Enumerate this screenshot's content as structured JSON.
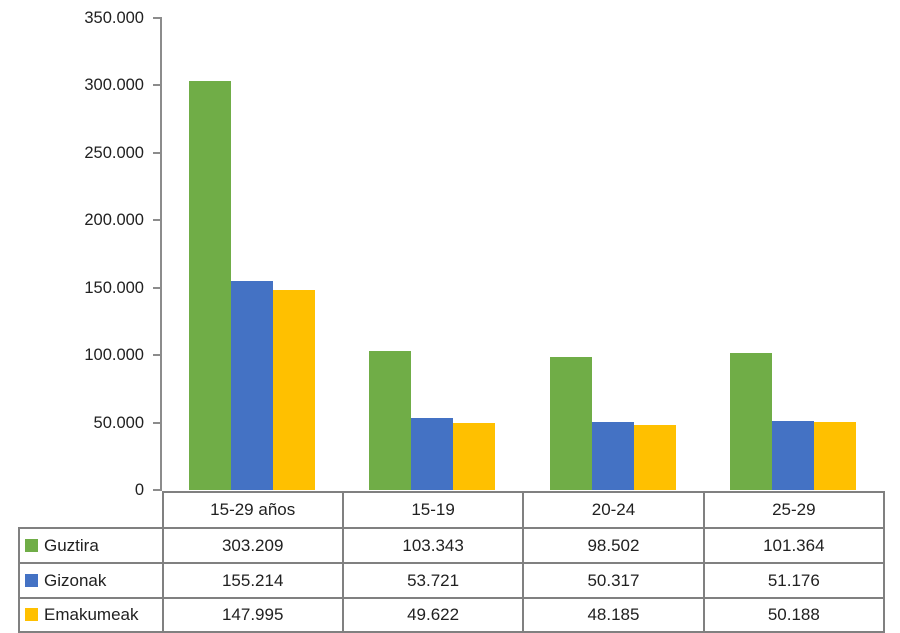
{
  "chart_data": {
    "type": "bar",
    "title": "",
    "xlabel": "",
    "ylabel": "",
    "categories": [
      "15-29 años",
      "15-19",
      "20-24",
      "25-29"
    ],
    "series": [
      {
        "name": "Guztira",
        "color": "#70AD47",
        "values": [
          303209,
          103343,
          98502,
          101364
        ],
        "labels": [
          "303.209",
          "103.343",
          "98.502",
          "101.364"
        ]
      },
      {
        "name": "Gizonak",
        "color": "#4472C4",
        "values": [
          155214,
          53721,
          50317,
          51176
        ],
        "labels": [
          "155.214",
          "53.721",
          "50.317",
          "51.176"
        ]
      },
      {
        "name": "Emakumeak",
        "color": "#FFC000",
        "values": [
          147995,
          49622,
          48185,
          50188
        ],
        "labels": [
          "147.995",
          "49.622",
          "48.185",
          "50.188"
        ]
      }
    ],
    "y_axis": {
      "min": 0,
      "max": 350000,
      "step": 50000,
      "tick_labels": [
        "350.000",
        "300.000",
        "250.000",
        "200.000",
        "150.000",
        "100.000",
        "50.000",
        "0"
      ]
    },
    "grid": false,
    "legend_position": "data-table-left",
    "data_table_shown": true
  },
  "colors": {
    "axis": "#8c8c8c",
    "table_border": "#808080",
    "text": "#212121",
    "background": "#ffffff"
  }
}
